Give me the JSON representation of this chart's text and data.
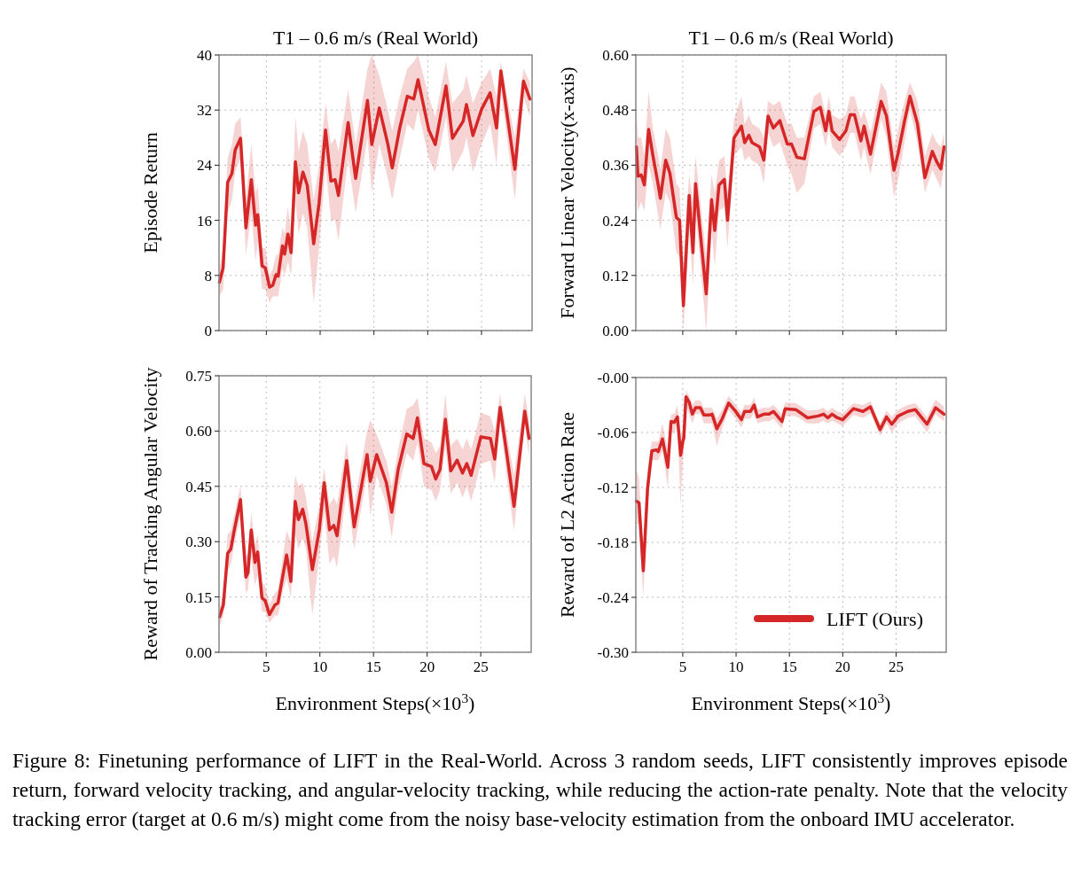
{
  "chart_data": [
    {
      "type": "line",
      "title": "T1 – 0.6 m/s (Real World)",
      "ylabel": "Episode Return",
      "xlim": [
        0.6,
        29.7
      ],
      "xticks": [
        5,
        10,
        15,
        20,
        25
      ],
      "ylim": [
        0,
        40
      ],
      "yticks": [
        0,
        8,
        16,
        24,
        32,
        40
      ],
      "grid": true,
      "tick_labels": "y",
      "legend": false,
      "line_style": "solid",
      "marker": "none",
      "series": [
        {
          "color": "#d62728",
          "x": [
            0.63,
            0.98,
            1.4,
            1.8,
            2.1,
            2.6,
            3.1,
            3.6,
            4.0,
            4.2,
            4.6,
            4.9,
            5.3,
            5.6,
            5.9,
            6.1,
            6.5,
            6.7,
            7.0,
            7.3,
            7.7,
            8.0,
            8.4,
            8.8,
            9.4,
            9.9,
            10.5,
            11.0,
            11.4,
            11.7,
            12.6,
            13.3,
            14.4,
            14.8,
            15.5,
            16.3,
            16.7,
            17.4,
            18.1,
            18.7,
            19.1,
            20.1,
            20.7,
            21.7,
            22.3,
            23.3,
            23.6,
            24.2,
            25.0,
            25.8,
            26.4,
            26.8,
            28.1,
            28.9,
            29.5
          ],
          "values": [
            7.0,
            9.1,
            21.5,
            22.8,
            26.2,
            27.9,
            14.9,
            21.9,
            15.3,
            16.8,
            9.4,
            9.1,
            6.3,
            6.6,
            8.1,
            7.9,
            12.3,
            11.1,
            14.0,
            11.3,
            24.5,
            20.0,
            23.0,
            21.1,
            12.6,
            18.5,
            29.1,
            21.7,
            21.9,
            19.6,
            30.2,
            22.1,
            33.4,
            27.0,
            32.3,
            27.0,
            23.6,
            29.4,
            34.0,
            33.6,
            36.4,
            29.1,
            27.0,
            35.5,
            27.9,
            30.4,
            32.8,
            28.3,
            32.1,
            34.5,
            29.4,
            37.7,
            23.4,
            36.2,
            33.6
          ],
          "lower": [
            5,
            6,
            17,
            19,
            23,
            25,
            11,
            17,
            10,
            13,
            6,
            6,
            4,
            5,
            5,
            5,
            9,
            8,
            10,
            8,
            19,
            14,
            17,
            15,
            4,
            12,
            24,
            16,
            16,
            13,
            25,
            17,
            28,
            20,
            27,
            22,
            19,
            25,
            30,
            29,
            32,
            25,
            23,
            31,
            23,
            26,
            28,
            23,
            27,
            30,
            24,
            35,
            19,
            34,
            31
          ],
          "upper": [
            9,
            12,
            25,
            27,
            30,
            31,
            19,
            27,
            20,
            21,
            12,
            12,
            8,
            9,
            11,
            11,
            15,
            14,
            18,
            14,
            31,
            26,
            29,
            27,
            19,
            24,
            33,
            27,
            28,
            26,
            35,
            27,
            38,
            40,
            37,
            32,
            29,
            34,
            38,
            39,
            40,
            34,
            31,
            39,
            33,
            35,
            37,
            33,
            36,
            38,
            34,
            39,
            28,
            38,
            36
          ]
        }
      ]
    },
    {
      "type": "line",
      "title": "T1 – 0.6 m/s (Real World)",
      "ylabel": "Forward Linear Velocity(x-axis)",
      "xlim": [
        0.6,
        29.7
      ],
      "xticks": [
        5,
        10,
        15,
        20,
        25
      ],
      "ylim": [
        0,
        0.6
      ],
      "yticks": [
        {
          "value": 0,
          "label": "0.00"
        },
        {
          "value": 0.12,
          "label": "0.12"
        },
        {
          "value": 0.24,
          "label": "0.24"
        },
        {
          "value": 0.36,
          "label": "0.36"
        },
        {
          "value": 0.48,
          "label": "0.48"
        },
        {
          "value": 0.6,
          "label": "0.60"
        }
      ],
      "grid": true,
      "tick_labels": "y",
      "legend": false,
      "line_style": "solid",
      "marker": "none",
      "series": [
        {
          "color": "#d62728",
          "x": [
            0.65,
            0.8,
            1.1,
            1.4,
            1.8,
            2.2,
            2.7,
            2.9,
            3.4,
            3.8,
            4.4,
            4.7,
            5.06,
            5.6,
            5.96,
            6.2,
            7.2,
            7.7,
            8.0,
            8.4,
            8.9,
            9.2,
            9.8,
            10.5,
            10.8,
            11.2,
            11.5,
            12.2,
            12.6,
            13.0,
            13.5,
            14.1,
            14.8,
            15.2,
            15.7,
            16.4,
            17.3,
            17.9,
            18.4,
            18.7,
            19.0,
            19.7,
            20.3,
            20.7,
            21.1,
            21.7,
            22.0,
            22.6,
            23.6,
            24.1,
            24.8,
            25.2,
            25.8,
            26.3,
            27.0,
            27.7,
            28.4,
            28.8,
            29.2,
            29.5
          ],
          "values": [
            0.4,
            0.336,
            0.339,
            0.317,
            0.438,
            0.381,
            0.317,
            0.288,
            0.371,
            0.342,
            0.246,
            0.24,
            0.054,
            0.294,
            0.17,
            0.32,
            0.08,
            0.285,
            0.218,
            0.317,
            0.329,
            0.24,
            0.419,
            0.445,
            0.409,
            0.425,
            0.409,
            0.4,
            0.371,
            0.467,
            0.441,
            0.457,
            0.406,
            0.406,
            0.377,
            0.374,
            0.477,
            0.486,
            0.435,
            0.477,
            0.435,
            0.416,
            0.435,
            0.47,
            0.47,
            0.413,
            0.445,
            0.384,
            0.499,
            0.467,
            0.349,
            0.387,
            0.457,
            0.51,
            0.451,
            0.333,
            0.39,
            0.368,
            0.352,
            0.4
          ],
          "lower": [
            0.3,
            0.26,
            0.28,
            0.26,
            0.36,
            0.32,
            0.25,
            0.22,
            0.3,
            0.28,
            0.17,
            0.16,
            0.0,
            0.22,
            0.1,
            0.26,
            0.0,
            0.22,
            0.14,
            0.26,
            0.27,
            0.18,
            0.38,
            0.4,
            0.37,
            0.38,
            0.37,
            0.36,
            0.32,
            0.43,
            0.4,
            0.41,
            0.36,
            0.34,
            0.3,
            0.32,
            0.44,
            0.45,
            0.4,
            0.44,
            0.4,
            0.38,
            0.4,
            0.43,
            0.43,
            0.37,
            0.4,
            0.34,
            0.46,
            0.42,
            0.29,
            0.33,
            0.41,
            0.48,
            0.41,
            0.3,
            0.35,
            0.33,
            0.31,
            0.36
          ],
          "upper": [
            0.48,
            0.42,
            0.42,
            0.38,
            0.52,
            0.44,
            0.38,
            0.35,
            0.44,
            0.42,
            0.32,
            0.31,
            0.15,
            0.34,
            0.28,
            0.38,
            0.16,
            0.34,
            0.3,
            0.37,
            0.38,
            0.3,
            0.46,
            0.51,
            0.45,
            0.47,
            0.45,
            0.44,
            0.42,
            0.5,
            0.49,
            0.5,
            0.45,
            0.45,
            0.42,
            0.42,
            0.51,
            0.52,
            0.47,
            0.51,
            0.47,
            0.46,
            0.47,
            0.51,
            0.51,
            0.46,
            0.48,
            0.43,
            0.54,
            0.52,
            0.4,
            0.44,
            0.5,
            0.54,
            0.5,
            0.38,
            0.43,
            0.41,
            0.4,
            0.43
          ]
        }
      ]
    },
    {
      "type": "line",
      "ylabel": "Reward of Tracking Angular Velocity",
      "xlabel": "Environment Steps(×10$^{3}$)",
      "xlim": [
        0.6,
        29.7
      ],
      "xticks": [
        5,
        10,
        15,
        20,
        25
      ],
      "ylim": [
        0,
        0.75
      ],
      "yticks": [
        {
          "value": 0,
          "label": "0.00"
        },
        {
          "value": 0.15,
          "label": "0.15"
        },
        {
          "value": 0.3,
          "label": "0.30"
        },
        {
          "value": 0.45,
          "label": "0.45"
        },
        {
          "value": 0.6,
          "label": "0.60"
        },
        {
          "value": 0.75,
          "label": "0.75"
        }
      ],
      "grid": true,
      "legend": false,
      "line_style": "solid",
      "marker": "none",
      "series": [
        {
          "color": "#d62728",
          "x": [
            0.65,
            1.0,
            1.4,
            1.7,
            2.0,
            2.6,
            3.1,
            3.3,
            3.6,
            3.95,
            4.2,
            4.6,
            4.9,
            5.3,
            5.8,
            6.1,
            6.5,
            6.9,
            7.3,
            7.7,
            8.0,
            8.4,
            8.7,
            9.3,
            9.95,
            10.4,
            10.9,
            11.3,
            11.6,
            12.5,
            13.2,
            14.4,
            14.7,
            15.3,
            16.2,
            16.7,
            17.3,
            18.1,
            18.7,
            19.1,
            19.7,
            20.4,
            20.8,
            21.2,
            21.7,
            22.2,
            22.8,
            23.3,
            23.7,
            24.1,
            25.0,
            25.9,
            26.3,
            26.8,
            27.4,
            28.1,
            29.1,
            29.5
          ],
          "values": [
            0.096,
            0.128,
            0.268,
            0.28,
            0.328,
            0.414,
            0.204,
            0.216,
            0.332,
            0.244,
            0.272,
            0.148,
            0.14,
            0.102,
            0.128,
            0.134,
            0.2,
            0.264,
            0.192,
            0.409,
            0.36,
            0.388,
            0.348,
            0.224,
            0.332,
            0.46,
            0.332,
            0.344,
            0.316,
            0.52,
            0.34,
            0.536,
            0.464,
            0.536,
            0.46,
            0.38,
            0.496,
            0.592,
            0.58,
            0.636,
            0.512,
            0.504,
            0.47,
            0.496,
            0.632,
            0.492,
            0.521,
            0.486,
            0.512,
            0.48,
            0.584,
            0.58,
            0.524,
            0.664,
            0.544,
            0.396,
            0.654,
            0.58
          ],
          "lower": [
            0.07,
            0.1,
            0.22,
            0.24,
            0.29,
            0.37,
            0.16,
            0.17,
            0.26,
            0.18,
            0.21,
            0.11,
            0.11,
            0.08,
            0.1,
            0.1,
            0.16,
            0.2,
            0.15,
            0.32,
            0.28,
            0.31,
            0.28,
            0.1,
            0.26,
            0.38,
            0.24,
            0.26,
            0.23,
            0.44,
            0.28,
            0.48,
            0.37,
            0.48,
            0.4,
            0.31,
            0.44,
            0.54,
            0.52,
            0.57,
            0.45,
            0.44,
            0.41,
            0.44,
            0.56,
            0.43,
            0.46,
            0.42,
            0.45,
            0.41,
            0.51,
            0.52,
            0.46,
            0.63,
            0.48,
            0.33,
            0.62,
            0.53
          ],
          "upper": [
            0.12,
            0.16,
            0.32,
            0.33,
            0.37,
            0.45,
            0.26,
            0.27,
            0.38,
            0.29,
            0.32,
            0.19,
            0.18,
            0.13,
            0.16,
            0.17,
            0.25,
            0.33,
            0.3,
            0.48,
            0.45,
            0.46,
            0.42,
            0.3,
            0.4,
            0.5,
            0.4,
            0.42,
            0.4,
            0.57,
            0.4,
            0.6,
            0.63,
            0.59,
            0.52,
            0.45,
            0.55,
            0.66,
            0.67,
            0.69,
            0.58,
            0.57,
            0.54,
            0.56,
            0.7,
            0.56,
            0.58,
            0.55,
            0.58,
            0.55,
            0.65,
            0.64,
            0.6,
            0.7,
            0.6,
            0.48,
            0.7,
            0.63
          ]
        }
      ]
    },
    {
      "type": "line",
      "ylabel": "Reward of L2 Action Rate",
      "xlabel": "Environment Steps(×10$^{3}$)",
      "xlim": [
        0.6,
        29.7
      ],
      "xticks": [
        5,
        10,
        15,
        20,
        25
      ],
      "ylim": [
        -0.3,
        0
      ],
      "yticks": [
        {
          "value": -0.3,
          "label": "-0.30"
        },
        {
          "value": -0.24,
          "label": "-0.24"
        },
        {
          "value": -0.18,
          "label": "-0.18"
        },
        {
          "value": -0.12,
          "label": "-0.12"
        },
        {
          "value": -0.06,
          "label": "-0.06"
        },
        {
          "value": 0,
          "label": "-0.00"
        }
      ],
      "grid": true,
      "legend": "bottom right",
      "line_style": "solid",
      "marker": "none",
      "annotations": [
        "Figure 8: Finetuning performance of LIFT in the Real-World.  Across 3 random seeds, LIFT consistently improves episode return, forward velocity tracking, and angular-velocity tracking, while reducing the action-rate penalty.  Note that the velocity tracking error (target at 0.6 m/s) might come from the noisy base-velocity estimation from the onboard IMU accelerator."
      ],
      "series": [
        {
          "name": "LIFT (Ours)",
          "color": "#d62728",
          "x": [
            0.65,
            0.9,
            1.3,
            1.7,
            2.1,
            2.5,
            2.7,
            3.1,
            3.6,
            3.9,
            4.2,
            4.5,
            4.8,
            5.0,
            5.1,
            5.3,
            5.6,
            5.9,
            6.2,
            6.65,
            6.98,
            7.5,
            7.75,
            8.2,
            8.7,
            9.3,
            9.96,
            10.5,
            10.8,
            11.35,
            11.7,
            12.0,
            12.6,
            13.1,
            13.5,
            14.3,
            14.6,
            15.6,
            16.7,
            17.7,
            18.2,
            18.6,
            19.0,
            19.5,
            20.0,
            21.0,
            21.9,
            22.6,
            23.5,
            24.1,
            24.6,
            25.2,
            26.1,
            26.8,
            27.9,
            28.7,
            29.5
          ],
          "values": [
            -0.135,
            -0.137,
            -0.211,
            -0.121,
            -0.08,
            -0.079,
            -0.081,
            -0.067,
            -0.098,
            -0.048,
            -0.049,
            -0.043,
            -0.085,
            -0.07,
            -0.066,
            -0.021,
            -0.027,
            -0.04,
            -0.033,
            -0.033,
            -0.041,
            -0.041,
            -0.04,
            -0.056,
            -0.045,
            -0.028,
            -0.037,
            -0.046,
            -0.037,
            -0.037,
            -0.03,
            -0.043,
            -0.04,
            -0.04,
            -0.037,
            -0.048,
            -0.034,
            -0.035,
            -0.044,
            -0.042,
            -0.04,
            -0.044,
            -0.04,
            -0.044,
            -0.046,
            -0.034,
            -0.037,
            -0.032,
            -0.057,
            -0.043,
            -0.051,
            -0.042,
            -0.037,
            -0.035,
            -0.051,
            -0.033,
            -0.04
          ],
          "lower": [
            -0.16,
            -0.16,
            -0.24,
            -0.14,
            -0.09,
            -0.09,
            -0.09,
            -0.08,
            -0.12,
            -0.06,
            -0.06,
            -0.05,
            -0.14,
            -0.09,
            -0.08,
            -0.03,
            -0.04,
            -0.05,
            -0.04,
            -0.04,
            -0.05,
            -0.05,
            -0.05,
            -0.075,
            -0.055,
            -0.035,
            -0.045,
            -0.055,
            -0.045,
            -0.045,
            -0.038,
            -0.05,
            -0.048,
            -0.048,
            -0.045,
            -0.056,
            -0.042,
            -0.042,
            -0.05,
            -0.05,
            -0.047,
            -0.05,
            -0.047,
            -0.05,
            -0.053,
            -0.041,
            -0.044,
            -0.039,
            -0.064,
            -0.05,
            -0.06,
            -0.05,
            -0.044,
            -0.042,
            -0.06,
            -0.04,
            -0.048
          ],
          "upper": [
            -0.1,
            -0.11,
            -0.19,
            -0.1,
            -0.07,
            -0.07,
            -0.07,
            -0.05,
            -0.08,
            -0.04,
            -0.04,
            -0.03,
            -0.06,
            -0.06,
            -0.05,
            -0.014,
            -0.02,
            -0.03,
            -0.025,
            -0.025,
            -0.033,
            -0.033,
            -0.033,
            -0.045,
            -0.035,
            -0.02,
            -0.03,
            -0.038,
            -0.03,
            -0.03,
            -0.022,
            -0.035,
            -0.033,
            -0.033,
            -0.03,
            -0.04,
            -0.027,
            -0.028,
            -0.036,
            -0.035,
            -0.033,
            -0.037,
            -0.033,
            -0.037,
            -0.039,
            -0.028,
            -0.03,
            -0.026,
            -0.05,
            -0.036,
            -0.043,
            -0.035,
            -0.03,
            -0.028,
            -0.043,
            -0.024,
            -0.032
          ]
        }
      ]
    }
  ]
}
